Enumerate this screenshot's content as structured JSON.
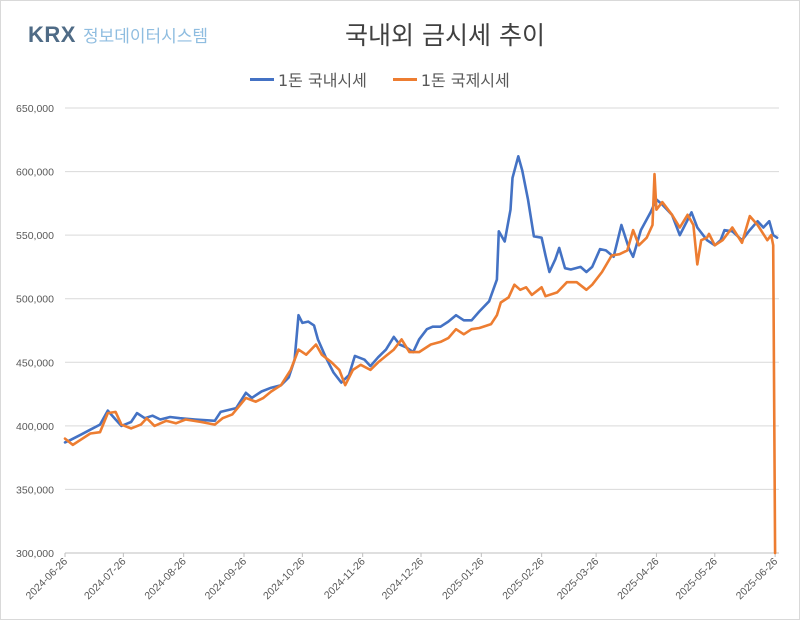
{
  "logo": {
    "brand": "KRX",
    "subtitle": "정보데이터시스템"
  },
  "chart_data": {
    "type": "line",
    "title": "국내외 금시세 추이",
    "xlabel": "",
    "ylabel": "",
    "ylim": [
      300000,
      650000
    ],
    "yticks": [
      "300,000",
      "350,000",
      "400,000",
      "450,000",
      "500,000",
      "550,000",
      "600,000",
      "650,000"
    ],
    "ytick_values": [
      300000,
      350000,
      400000,
      450000,
      500000,
      550000,
      600000,
      650000
    ],
    "xlim": [
      "2024-06-26",
      "2025-06-28"
    ],
    "xticks": [
      "2024-06-26",
      "2024-07-26",
      "2024-08-26",
      "2024-09-26",
      "2024-10-26",
      "2024-11-26",
      "2024-12-26",
      "2025-01-26",
      "2025-02-26",
      "2025-03-26",
      "2025-04-26",
      "2025-05-26",
      "2025-06-26"
    ],
    "grid": "horizontal",
    "legend": "top",
    "series": [
      {
        "name": "1돈 국내시세",
        "color": "#4472C4",
        "points": [
          [
            "2024-06-26",
            387000
          ],
          [
            "2024-06-29",
            389000
          ],
          [
            "2024-07-04",
            393000
          ],
          [
            "2024-07-09",
            397000
          ],
          [
            "2024-07-14",
            401000
          ],
          [
            "2024-07-18",
            412000
          ],
          [
            "2024-07-22",
            405000
          ],
          [
            "2024-07-25",
            400000
          ],
          [
            "2024-07-30",
            403000
          ],
          [
            "2024-08-02",
            410000
          ],
          [
            "2024-08-06",
            406000
          ],
          [
            "2024-08-10",
            408000
          ],
          [
            "2024-08-14",
            405000
          ],
          [
            "2024-08-19",
            407000
          ],
          [
            "2024-08-24",
            406000
          ],
          [
            "2024-09-01",
            405000
          ],
          [
            "2024-09-11",
            404000
          ],
          [
            "2024-09-14",
            411000
          ],
          [
            "2024-09-22",
            414000
          ],
          [
            "2024-09-27",
            426000
          ],
          [
            "2024-09-30",
            422000
          ],
          [
            "2024-10-05",
            427000
          ],
          [
            "2024-10-10",
            430000
          ],
          [
            "2024-10-15",
            432000
          ],
          [
            "2024-10-19",
            438000
          ],
          [
            "2024-10-22",
            452000
          ],
          [
            "2024-10-24",
            487000
          ],
          [
            "2024-10-26",
            481000
          ],
          [
            "2024-10-29",
            482000
          ],
          [
            "2024-11-01",
            479000
          ],
          [
            "2024-11-03",
            468000
          ],
          [
            "2024-11-07",
            454000
          ],
          [
            "2024-11-11",
            442000
          ],
          [
            "2024-11-15",
            434000
          ],
          [
            "2024-11-19",
            440000
          ],
          [
            "2024-11-22",
            455000
          ],
          [
            "2024-11-27",
            452000
          ],
          [
            "2024-11-30",
            447000
          ],
          [
            "2024-12-04",
            454000
          ],
          [
            "2024-12-08",
            460000
          ],
          [
            "2024-12-12",
            470000
          ],
          [
            "2024-12-15",
            464000
          ],
          [
            "2024-12-18",
            462000
          ],
          [
            "2024-12-22",
            458000
          ],
          [
            "2024-12-25",
            468000
          ],
          [
            "2024-12-29",
            476000
          ],
          [
            "2025-01-01",
            478000
          ],
          [
            "2025-01-05",
            478000
          ],
          [
            "2025-01-09",
            482000
          ],
          [
            "2025-01-13",
            487000
          ],
          [
            "2025-01-17",
            483000
          ],
          [
            "2025-01-21",
            483000
          ],
          [
            "2025-01-25",
            490000
          ],
          [
            "2025-01-30",
            498000
          ],
          [
            "2025-02-03",
            515000
          ],
          [
            "2025-02-04",
            553000
          ],
          [
            "2025-02-07",
            545000
          ],
          [
            "2025-02-10",
            570000
          ],
          [
            "2025-02-11",
            595000
          ],
          [
            "2025-02-14",
            612000
          ],
          [
            "2025-02-16",
            601000
          ],
          [
            "2025-02-19",
            578000
          ],
          [
            "2025-02-22",
            549000
          ],
          [
            "2025-02-26",
            548000
          ],
          [
            "2025-02-28",
            534000
          ],
          [
            "2025-03-02",
            521000
          ],
          [
            "2025-03-05",
            531000
          ],
          [
            "2025-03-07",
            540000
          ],
          [
            "2025-03-10",
            524000
          ],
          [
            "2025-03-13",
            523000
          ],
          [
            "2025-03-18",
            525000
          ],
          [
            "2025-03-21",
            521000
          ],
          [
            "2025-03-24",
            525000
          ],
          [
            "2025-03-28",
            539000
          ],
          [
            "2025-03-31",
            538000
          ],
          [
            "2025-04-04",
            533000
          ],
          [
            "2025-04-08",
            558000
          ],
          [
            "2025-04-12",
            539000
          ],
          [
            "2025-04-14",
            533000
          ],
          [
            "2025-04-18",
            554000
          ],
          [
            "2025-04-23",
            568000
          ],
          [
            "2025-04-26",
            578000
          ],
          [
            "2025-04-29",
            574000
          ],
          [
            "2025-05-04",
            566000
          ],
          [
            "2025-05-08",
            550000
          ],
          [
            "2025-05-12",
            562000
          ],
          [
            "2025-05-14",
            568000
          ],
          [
            "2025-05-17",
            556000
          ],
          [
            "2025-05-22",
            546000
          ],
          [
            "2025-05-26",
            542000
          ],
          [
            "2025-05-29",
            546000
          ],
          [
            "2025-05-31",
            554000
          ],
          [
            "2025-06-04",
            553000
          ],
          [
            "2025-06-09",
            546000
          ],
          [
            "2025-06-13",
            554000
          ],
          [
            "2025-06-17",
            561000
          ],
          [
            "2025-06-20",
            556000
          ],
          [
            "2025-06-23",
            561000
          ],
          [
            "2025-06-25",
            550000
          ],
          [
            "2025-06-27",
            548000
          ]
        ]
      },
      {
        "name": "1돈 국제시세",
        "color": "#ED7D31",
        "points": [
          [
            "2024-06-26",
            390000
          ],
          [
            "2024-06-30",
            385000
          ],
          [
            "2024-07-04",
            389000
          ],
          [
            "2024-07-09",
            394000
          ],
          [
            "2024-07-14",
            395000
          ],
          [
            "2024-07-18",
            410000
          ],
          [
            "2024-07-22",
            411000
          ],
          [
            "2024-07-25",
            401000
          ],
          [
            "2024-07-30",
            398000
          ],
          [
            "2024-08-04",
            401000
          ],
          [
            "2024-08-07",
            406000
          ],
          [
            "2024-08-11",
            400000
          ],
          [
            "2024-08-17",
            404000
          ],
          [
            "2024-08-22",
            402000
          ],
          [
            "2024-08-27",
            405000
          ],
          [
            "2024-09-04",
            403000
          ],
          [
            "2024-09-11",
            401000
          ],
          [
            "2024-09-15",
            406000
          ],
          [
            "2024-09-20",
            409000
          ],
          [
            "2024-09-27",
            422000
          ],
          [
            "2024-10-02",
            419000
          ],
          [
            "2024-10-06",
            422000
          ],
          [
            "2024-10-10",
            427000
          ],
          [
            "2024-10-15",
            432000
          ],
          [
            "2024-10-20",
            444000
          ],
          [
            "2024-10-24",
            460000
          ],
          [
            "2024-10-28",
            456000
          ],
          [
            "2024-11-02",
            464000
          ],
          [
            "2024-11-05",
            456000
          ],
          [
            "2024-11-10",
            450000
          ],
          [
            "2024-11-14",
            444000
          ],
          [
            "2024-11-17",
            432000
          ],
          [
            "2024-11-21",
            444000
          ],
          [
            "2024-11-25",
            448000
          ],
          [
            "2024-11-30",
            444000
          ],
          [
            "2024-12-04",
            450000
          ],
          [
            "2024-12-08",
            455000
          ],
          [
            "2024-12-12",
            460000
          ],
          [
            "2024-12-16",
            468000
          ],
          [
            "2024-12-20",
            458000
          ],
          [
            "2024-12-25",
            458000
          ],
          [
            "2024-12-31",
            464000
          ],
          [
            "2025-01-05",
            466000
          ],
          [
            "2025-01-09",
            469000
          ],
          [
            "2025-01-13",
            476000
          ],
          [
            "2025-01-17",
            472000
          ],
          [
            "2025-01-21",
            476000
          ],
          [
            "2025-01-25",
            477000
          ],
          [
            "2025-01-31",
            480000
          ],
          [
            "2025-02-03",
            487000
          ],
          [
            "2025-02-05",
            497000
          ],
          [
            "2025-02-09",
            501000
          ],
          [
            "2025-02-12",
            511000
          ],
          [
            "2025-02-15",
            507000
          ],
          [
            "2025-02-18",
            509000
          ],
          [
            "2025-02-21",
            503000
          ],
          [
            "2025-02-26",
            509000
          ],
          [
            "2025-02-28",
            502000
          ],
          [
            "2025-03-06",
            505000
          ],
          [
            "2025-03-11",
            513000
          ],
          [
            "2025-03-16",
            513000
          ],
          [
            "2025-03-21",
            507000
          ],
          [
            "2025-03-24",
            511000
          ],
          [
            "2025-03-29",
            521000
          ],
          [
            "2025-04-03",
            534000
          ],
          [
            "2025-04-07",
            535000
          ],
          [
            "2025-04-11",
            538000
          ],
          [
            "2025-04-14",
            554000
          ],
          [
            "2025-04-17",
            542000
          ],
          [
            "2025-04-21",
            548000
          ],
          [
            "2025-04-24",
            558000
          ],
          [
            "2025-04-25",
            598000
          ],
          [
            "2025-04-26",
            570000
          ],
          [
            "2025-04-29",
            576000
          ],
          [
            "2025-05-04",
            566000
          ],
          [
            "2025-05-08",
            556000
          ],
          [
            "2025-05-12",
            566000
          ],
          [
            "2025-05-15",
            558000
          ],
          [
            "2025-05-17",
            527000
          ],
          [
            "2025-05-19",
            546000
          ],
          [
            "2025-05-22",
            548000
          ],
          [
            "2025-05-23",
            551000
          ],
          [
            "2025-05-26",
            542000
          ],
          [
            "2025-05-30",
            546000
          ],
          [
            "2025-06-04",
            556000
          ],
          [
            "2025-06-09",
            544000
          ],
          [
            "2025-06-13",
            565000
          ],
          [
            "2025-06-17",
            558000
          ],
          [
            "2025-06-22",
            546000
          ],
          [
            "2025-06-24",
            550000
          ],
          [
            "2025-06-25",
            542000
          ],
          [
            "2025-06-26",
            300000
          ]
        ]
      }
    ]
  }
}
